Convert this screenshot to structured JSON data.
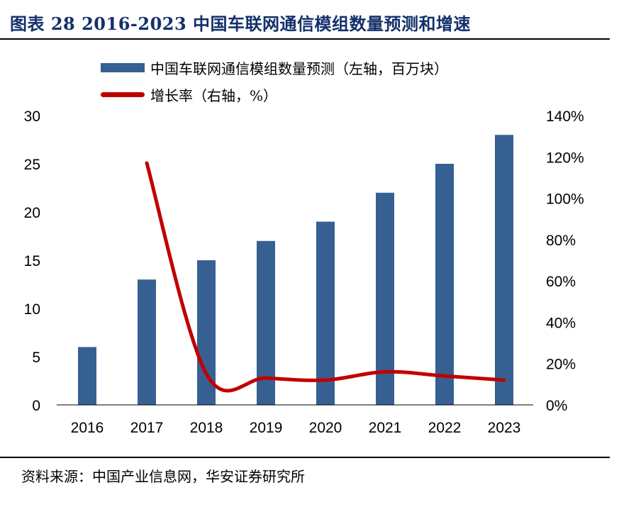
{
  "title": "图表 28 2016-2023 中国车联网通信模组数量预测和增速",
  "source": "资料来源：中国产业信息网，华安证券研究所",
  "colors": {
    "bar": "#376092",
    "line": "#c00000",
    "title": "#13306a"
  },
  "chart_data": {
    "type": "bar+line",
    "categories": [
      "2016",
      "2017",
      "2018",
      "2019",
      "2020",
      "2021",
      "2022",
      "2023"
    ],
    "series": [
      {
        "name": "中国车联网通信模组数量预测（左轴，百万块）",
        "type": "bar",
        "axis": "left",
        "values": [
          6,
          13,
          15,
          17,
          19,
          22,
          25,
          28
        ]
      },
      {
        "name": "增长率（右轴，%）",
        "type": "line",
        "axis": "right",
        "values": [
          null,
          117,
          15,
          13,
          12,
          16,
          14,
          12
        ]
      }
    ],
    "y_left": {
      "range": [
        0,
        30
      ],
      "ticks": [
        "0",
        "5",
        "10",
        "15",
        "20",
        "25",
        "30"
      ]
    },
    "y_right": {
      "range": [
        0,
        140
      ],
      "ticks": [
        "0%",
        "20%",
        "40%",
        "60%",
        "80%",
        "100%",
        "120%",
        "140%"
      ]
    },
    "grid": false,
    "legend_position": "top"
  }
}
